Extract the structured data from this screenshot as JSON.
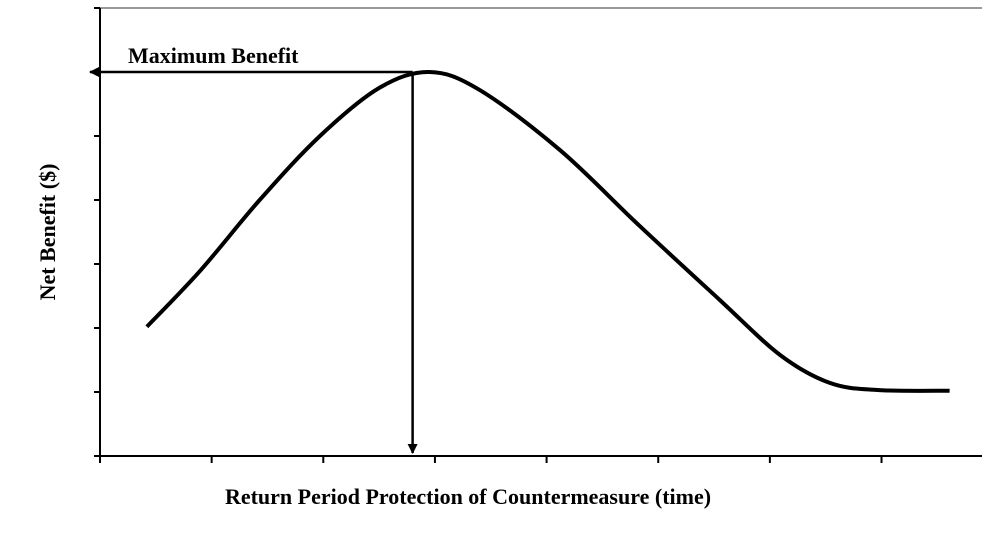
{
  "chart_data": {
    "type": "line",
    "xlabel": "Return Period Protection of Countermeasure (time)",
    "ylabel": "Net Benefit ($)",
    "annotation": {
      "text": "Maximum Benefit",
      "x": 2.8,
      "y": 6
    },
    "x": [
      0.42,
      0.9,
      1.43,
      1.97,
      2.5,
      2.95,
      3.4,
      4.12,
      4.83,
      5.55,
      6.09,
      6.54,
      6.98,
      7.61
    ],
    "series": [
      {
        "name": "Net Benefit",
        "color": "#000000",
        "values": [
          2.02,
          2.9,
          4.0,
          5.0,
          5.75,
          6.0,
          5.72,
          4.78,
          3.6,
          2.44,
          1.58,
          1.14,
          1.03,
          1.02
        ]
      }
    ],
    "xlim": [
      0,
      7.9
    ],
    "ylim": [
      0,
      7
    ],
    "xticks": [
      0,
      1,
      2,
      3,
      4,
      5,
      6,
      7
    ],
    "yticks": [
      0,
      1,
      2,
      3,
      4,
      5,
      6,
      7
    ]
  }
}
